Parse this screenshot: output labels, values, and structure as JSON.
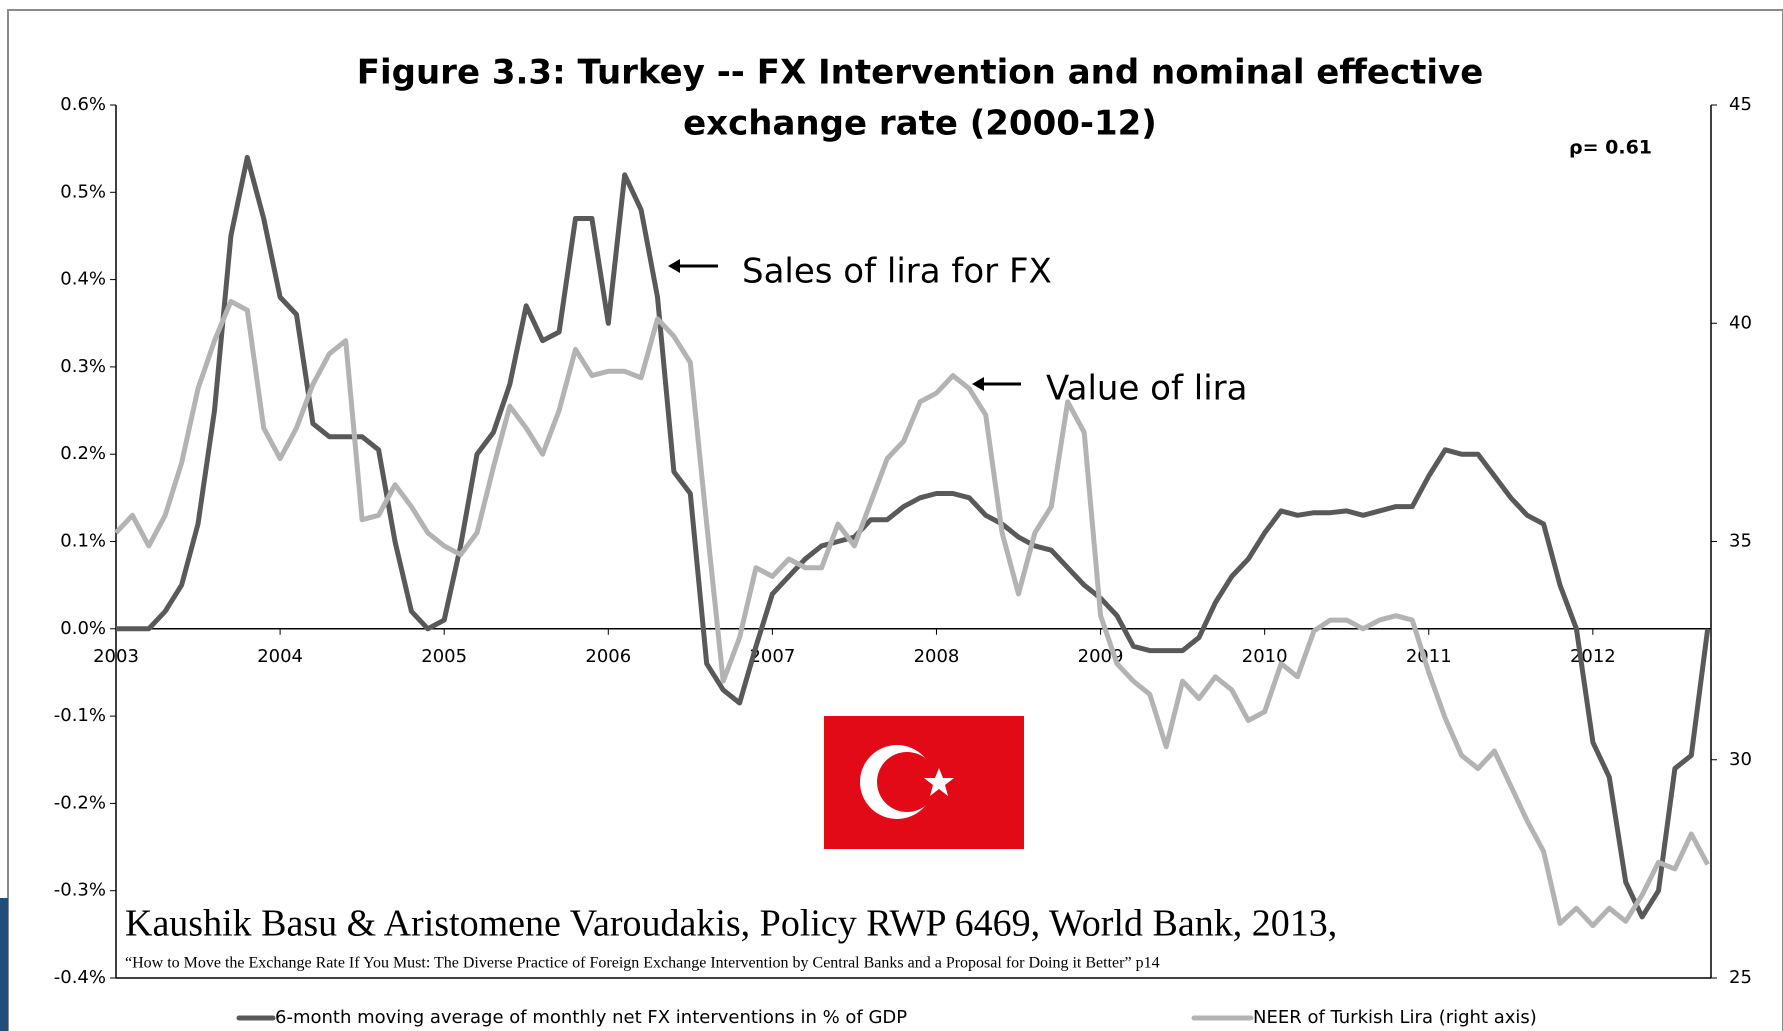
{
  "chart_data": {
    "type": "line",
    "title": [
      "Figure 3.3: Turkey -- FX Intervention and nominal effective",
      "exchange rate (2000-12)"
    ],
    "annotations": [
      "Sales of lira for FX",
      "Value of lira",
      "ρ= 0.61"
    ],
    "source": [
      "Kaushik Basu & Aristomene Varoudakis, Policy RWP 6469, World Bank, 2013,",
      "“How to Move the Exchange Rate If You Must: The Diverse Practice of Foreign Exchange Intervention by Central Banks and a Proposal for Doing it Better”  p14"
    ],
    "legend": "bottom",
    "xlim": [
      2003,
      2012.72
    ],
    "xticks": [
      2003,
      2004,
      2005,
      2006,
      2007,
      2008,
      2009,
      2010,
      2011,
      2012
    ],
    "ylim": [
      -0.4,
      0.6
    ],
    "yticks": [
      {
        "value": 0.6,
        "label": "0.6%"
      },
      {
        "value": 0.5,
        "label": "0.5%"
      },
      {
        "value": 0.4,
        "label": "0.4%"
      },
      {
        "value": 0.3,
        "label": "0.3%"
      },
      {
        "value": 0.2,
        "label": "0.2%"
      },
      {
        "value": 0.1,
        "label": "0.1%"
      },
      {
        "value": 0.0,
        "label": "0.0%"
      },
      {
        "value": -0.1,
        "label": "-0.1%"
      },
      {
        "value": -0.2,
        "label": "-0.2%"
      },
      {
        "value": -0.3,
        "label": "-0.3%"
      },
      {
        "value": -0.4,
        "label": "-0.4%"
      }
    ],
    "y2lim": [
      25,
      45
    ],
    "y2ticks": [
      25,
      30,
      35,
      40,
      45
    ],
    "x": [
      2003.0,
      2003.1,
      2003.2,
      2003.3,
      2003.4,
      2003.5,
      2003.6,
      2003.7,
      2003.8,
      2003.9,
      2004.0,
      2004.1,
      2004.2,
      2004.3,
      2004.4,
      2004.5,
      2004.6,
      2004.7,
      2004.8,
      2004.9,
      2005.0,
      2005.1,
      2005.2,
      2005.3,
      2005.4,
      2005.5,
      2005.6,
      2005.7,
      2005.8,
      2005.9,
      2006.0,
      2006.1,
      2006.2,
      2006.3,
      2006.4,
      2006.5,
      2006.6,
      2006.7,
      2006.8,
      2006.9,
      2007.0,
      2007.1,
      2007.2,
      2007.3,
      2007.4,
      2007.5,
      2007.6,
      2007.7,
      2007.8,
      2007.9,
      2008.0,
      2008.1,
      2008.2,
      2008.3,
      2008.4,
      2008.5,
      2008.6,
      2008.7,
      2008.8,
      2008.9,
      2009.0,
      2009.1,
      2009.2,
      2009.3,
      2009.4,
      2009.5,
      2009.6,
      2009.7,
      2009.8,
      2009.9,
      2010.0,
      2010.1,
      2010.2,
      2010.3,
      2010.4,
      2010.5,
      2010.6,
      2010.7,
      2010.8,
      2010.9,
      2011.0,
      2011.1,
      2011.2,
      2011.3,
      2011.4,
      2011.5,
      2011.6,
      2011.7,
      2011.8,
      2011.9,
      2012.0,
      2012.1,
      2012.2,
      2012.3,
      2012.4,
      2012.5,
      2012.6,
      2012.7
    ],
    "series": [
      {
        "name": "6-month moving average of monthly net FX interventions in % of GDP",
        "color": "#595959",
        "values": [
          0,
          0,
          0,
          0.02,
          0.05,
          0.12,
          0.25,
          0.45,
          0.54,
          0.47,
          0.38,
          0.36,
          0.235,
          0.22,
          0.22,
          0.22,
          0.205,
          0.1,
          0.02,
          0,
          0.01,
          0.095,
          0.2,
          0.225,
          0.28,
          0.37,
          0.33,
          0.34,
          0.47,
          0.47,
          0.35,
          0.52,
          0.48,
          0.38,
          0.18,
          0.155,
          -0.04,
          -0.07,
          -0.085,
          -0.02,
          0.04,
          0.06,
          0.08,
          0.095,
          0.1,
          0.105,
          0.125,
          0.125,
          0.14,
          0.15,
          0.155,
          0.155,
          0.15,
          0.13,
          0.12,
          0.105,
          0.095,
          0.09,
          0.07,
          0.05,
          0.035,
          0.015,
          -0.02,
          -0.025,
          -0.025,
          -0.025,
          -0.01,
          0.03,
          0.06,
          0.08,
          0.11,
          0.135,
          0.13,
          0.133,
          0.133,
          0.135,
          0.13,
          0.135,
          0.14,
          0.14,
          0.175,
          0.205,
          0.2,
          0.2,
          0.175,
          0.15,
          0.13,
          0.12,
          0.05,
          0.0,
          -0.13,
          -0.17,
          -0.29,
          -0.33,
          -0.3,
          -0.16,
          -0.145,
          0.0
        ]
      },
      {
        "name": "NEER of Turkish Lira (right axis)",
        "color": "#b3b3b3",
        "axis": "y2",
        "values": [
          35.2,
          35.6,
          34.9,
          35.6,
          36.8,
          38.5,
          39.6,
          40.5,
          40.3,
          37.6,
          36.9,
          37.6,
          38.6,
          39.3,
          39.6,
          35.5,
          35.6,
          36.3,
          35.8,
          35.2,
          34.9,
          34.7,
          35.2,
          36.7,
          38.1,
          37.6,
          37.0,
          38.0,
          39.4,
          38.8,
          38.9,
          38.9,
          38.75,
          40.1,
          39.7,
          39.1,
          35.4,
          31.8,
          32.8,
          34.4,
          34.2,
          34.6,
          34.4,
          34.4,
          35.4,
          34.9,
          35.9,
          36.9,
          37.3,
          38.2,
          38.4,
          38.8,
          38.5,
          37.9,
          35.2,
          33.8,
          35.2,
          35.8,
          38.2,
          37.5,
          33.3,
          32.2,
          31.8,
          31.5,
          30.3,
          31.8,
          31.4,
          31.9,
          31.6,
          30.9,
          31.1,
          32.2,
          31.9,
          32.95,
          33.2,
          33.2,
          33.0,
          33.2,
          33.3,
          33.2,
          32.0,
          30.95,
          30.1,
          29.8,
          30.2,
          29.4,
          28.6,
          27.9,
          26.25,
          26.6,
          26.2,
          26.6,
          26.3,
          26.9,
          27.65,
          27.5,
          28.3,
          27.6
        ]
      }
    ]
  }
}
